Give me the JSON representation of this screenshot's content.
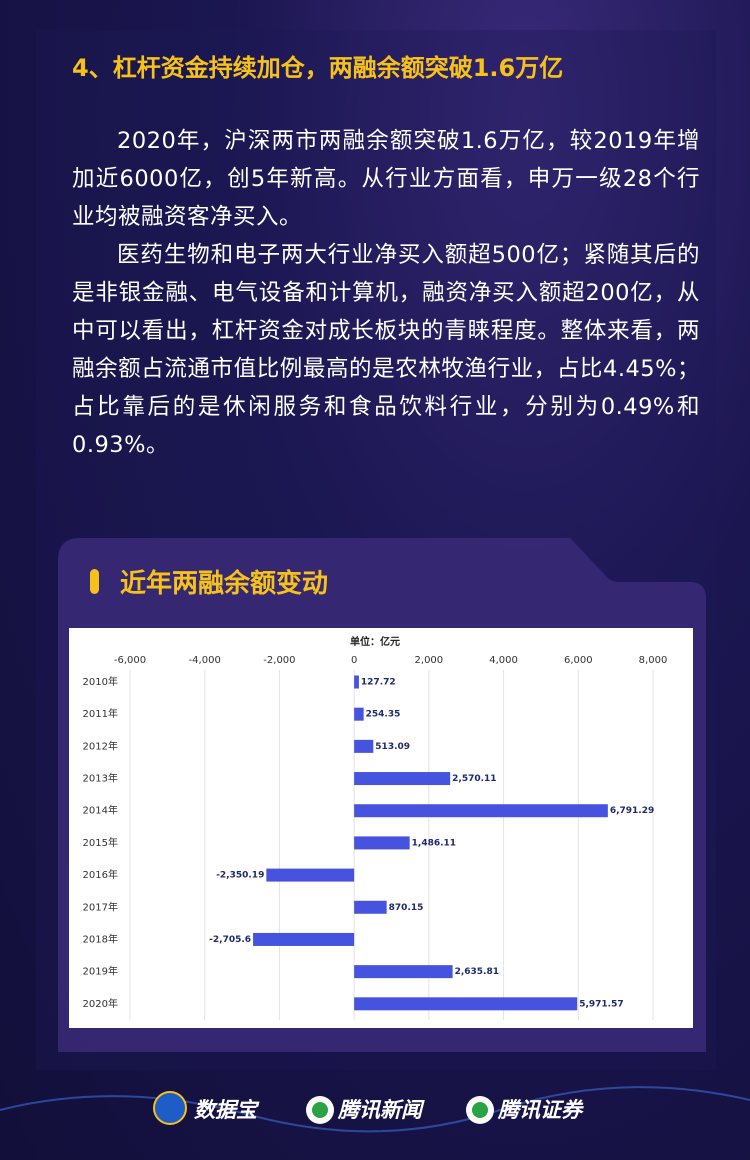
{
  "heading": "4、杠杆资金持续加仓，两融余额突破1.6万亿",
  "paragraphs": [
    "2020年，沪深两市两融余额突破1.6万亿，较2019年增加近6000亿，创5年新高。从行业方面看，申万一级28个行业均被融资客净买入。",
    "医药生物和电子两大行业净买入额超500亿；紧随其后的是非银金融、电气设备和计算机，融资净买入额超200亿，从中可以看出，杠杆资金对成长板块的青睐程度。整体来看，两融余额占流通市值比例最高的是农林牧渔行业，占比4.45%；占比靠后的是休闲服务和食品饮料行业，分别为0.49%和0.93%。"
  ],
  "card_title": "近年两融余额变动",
  "chart_data": {
    "type": "hbar",
    "subtitle": "单位：亿元",
    "categories": [
      "2010年",
      "2011年",
      "2012年",
      "2013年",
      "2014年",
      "2015年",
      "2016年",
      "2017年",
      "2018年",
      "2019年",
      "2020年"
    ],
    "values": [
      127.72,
      254.35,
      513.09,
      2570.11,
      6791.29,
      1486.11,
      -2350.19,
      870.15,
      -2705.6,
      2635.81,
      5971.57
    ],
    "value_labels": [
      "127.72",
      "254.35",
      "513.09",
      "2,570.11",
      "6,791.29",
      "1,486.11",
      "-2,350.19",
      "870.15",
      "-2,705.6",
      "2,635.81",
      "5,971.57"
    ],
    "color": "#4653df",
    "xlim": [
      -6000,
      8000
    ],
    "xticks": [
      {
        "value": -6000,
        "label": "-6,000"
      },
      {
        "value": -4000,
        "label": "-4,000"
      },
      {
        "value": -2000,
        "label": "-2,000"
      },
      0,
      {
        "value": 2000,
        "label": "2,000"
      },
      {
        "value": 4000,
        "label": "4,000"
      },
      {
        "value": 6000,
        "label": "6,000"
      },
      {
        "value": 8000,
        "label": "8,000"
      }
    ],
    "grid": true
  },
  "footer": [
    "数据宝",
    "腾讯新闻",
    "腾讯证券"
  ]
}
